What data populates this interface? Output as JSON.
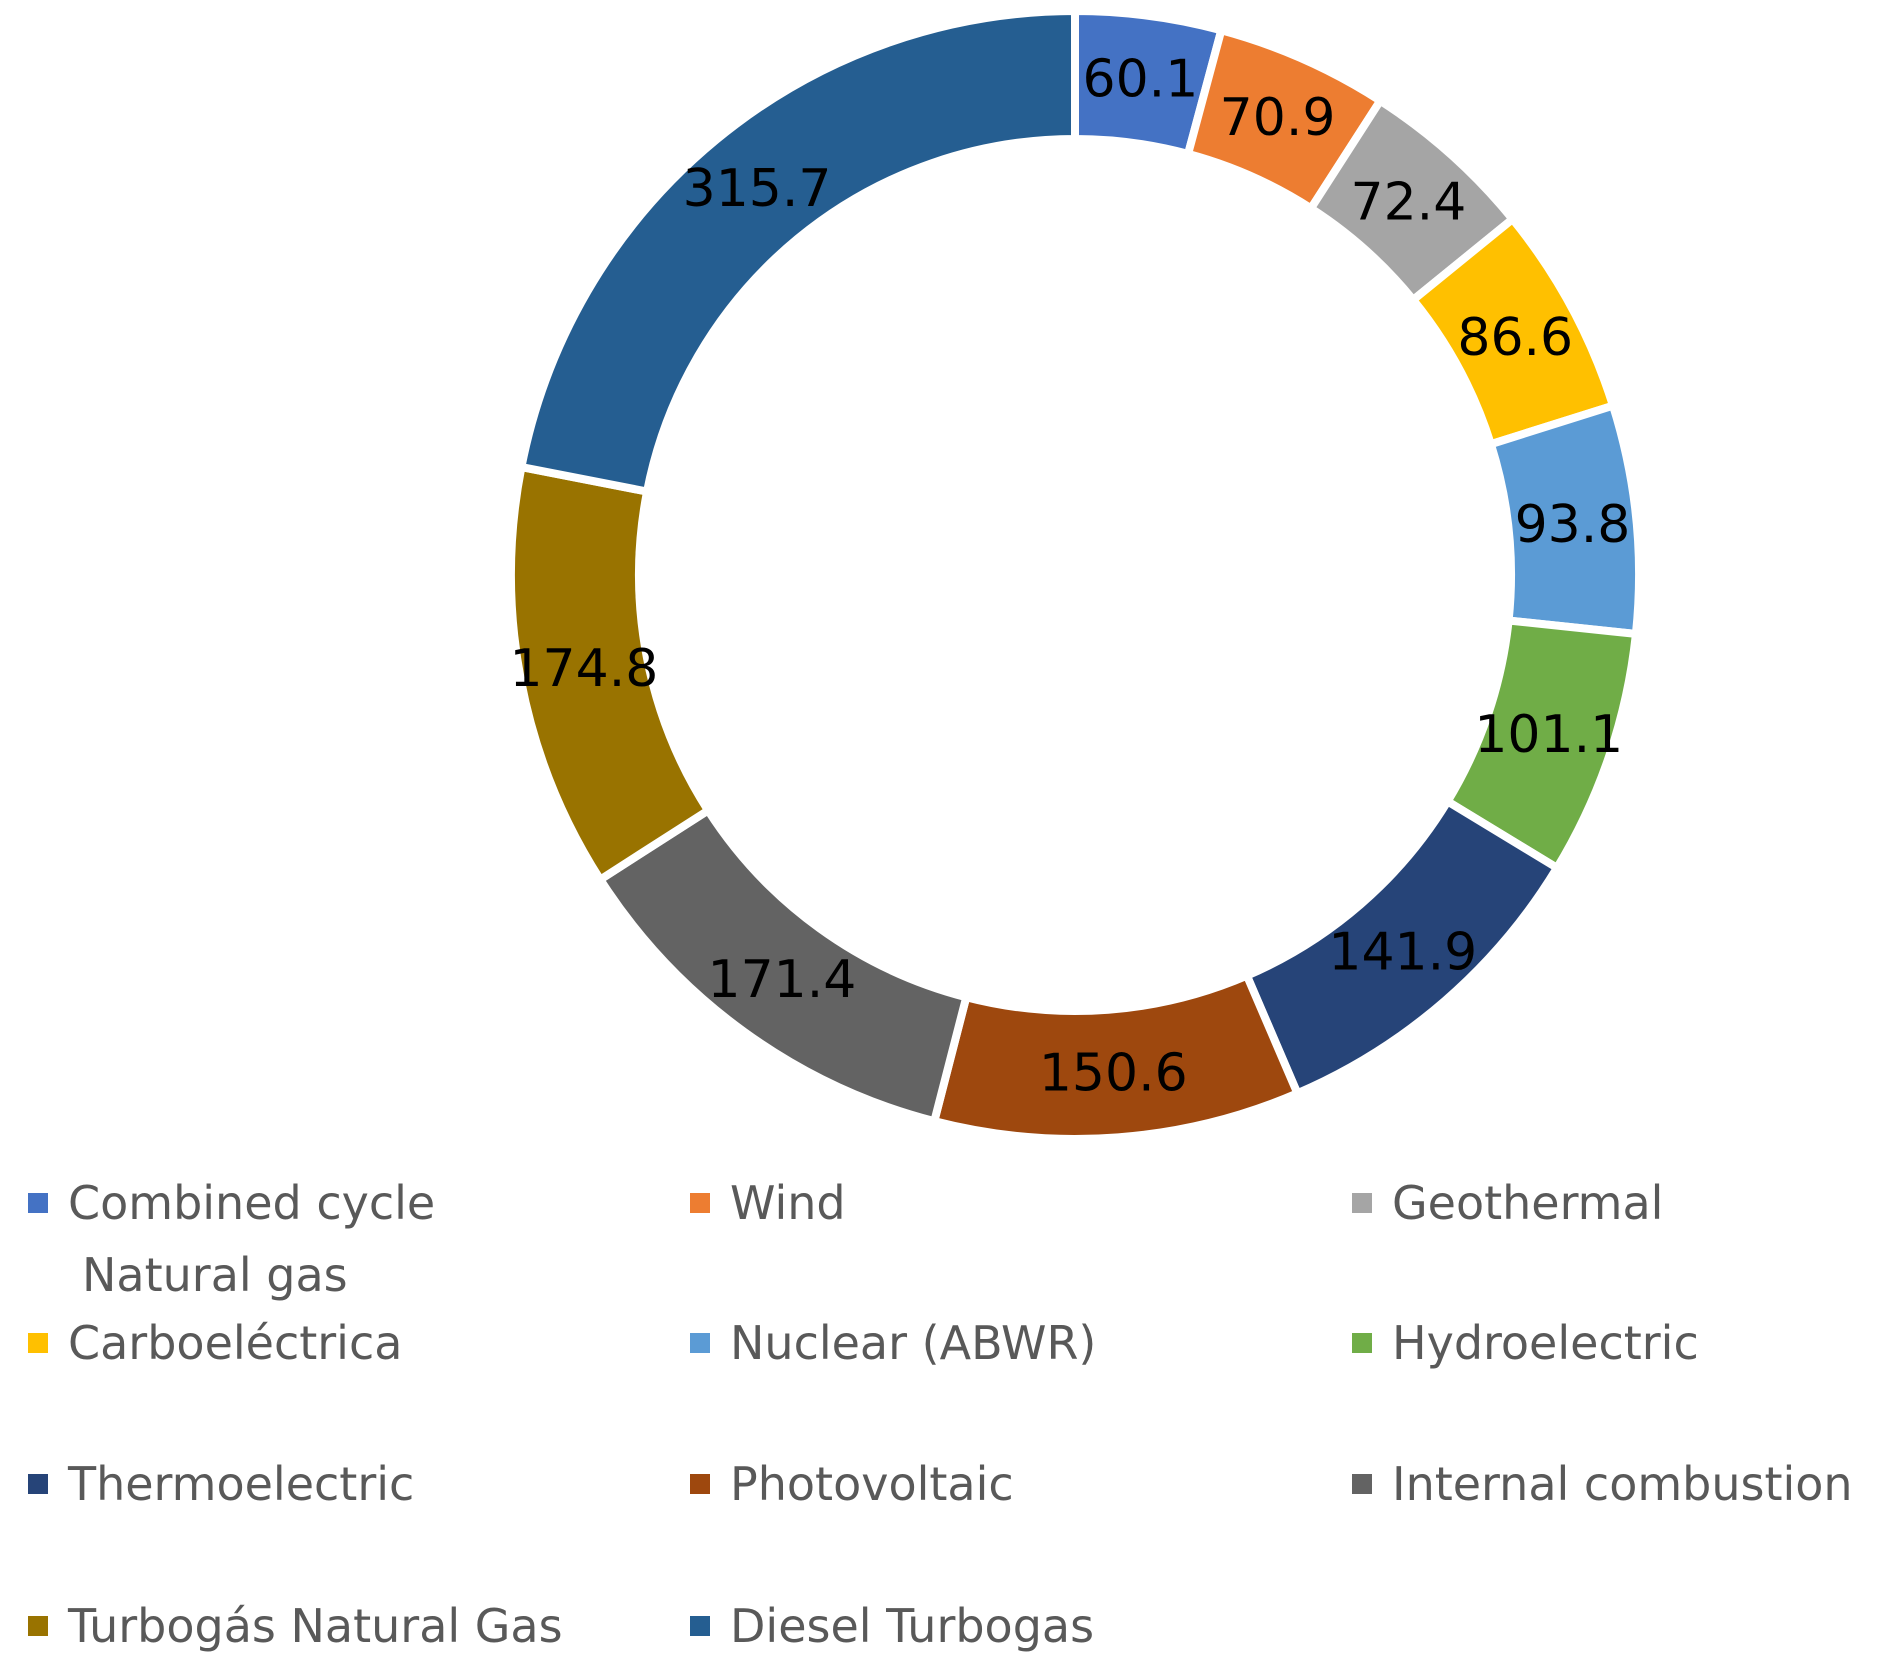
{
  "chart_data": {
    "type": "donut",
    "title": "",
    "categories": [
      "Combined cycle Natural gas",
      "Wind",
      "Geothermal",
      "Carboeléctrica",
      "Nuclear (ABWR)",
      "Hydroelectric",
      "Thermoelectric",
      "Photovoltaic",
      "Internal combustion",
      "Turbogás Natural Gas",
      "Diesel Turbogas"
    ],
    "legend_lines": [
      [
        "Combined cycle",
        "Natural gas"
      ],
      [
        "Wind"
      ],
      [
        "Geothermal"
      ],
      [
        "Carboeléctrica"
      ],
      [
        "Nuclear (ABWR)"
      ],
      [
        "Hydroelectric"
      ],
      [
        "Thermoelectric"
      ],
      [
        "Photovoltaic"
      ],
      [
        "Internal combustion"
      ],
      [
        "Turbogás Natural Gas"
      ],
      [
        "Diesel Turbogas"
      ]
    ],
    "values": [
      60.1,
      70.9,
      72.4,
      86.6,
      93.8,
      101.1,
      141.9,
      150.6,
      171.4,
      174.8,
      315.7
    ],
    "data_labels": [
      "60.1",
      "70.9",
      "72.4",
      "86.6",
      "93.8",
      "101.1",
      "141.9",
      "150.6",
      "171.4",
      "174.8",
      "315.7"
    ],
    "colors": [
      "#4472C4",
      "#ED7D31",
      "#A5A5A5",
      "#FFC000",
      "#5B9BD5",
      "#70AD47",
      "#264478",
      "#9E480E",
      "#636363",
      "#997300",
      "#255E91"
    ],
    "legend_position": "bottom"
  }
}
